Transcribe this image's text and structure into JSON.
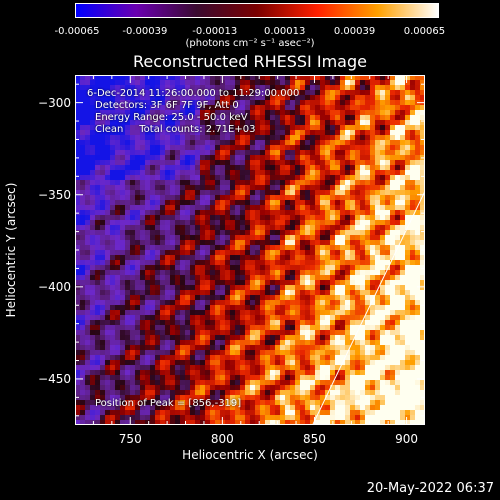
{
  "colorbar": {
    "ticks": [
      "-0.00065",
      "-0.00039",
      "-0.00013",
      "0.00013",
      "0.00039",
      "0.00065"
    ],
    "units": "(photons cm⁻² s⁻¹ asec⁻²)",
    "colors": [
      "#0000ff",
      "#6a00b0",
      "#3a0a30",
      "#7a0000",
      "#ff2000",
      "#ffa000",
      "#ffffff"
    ]
  },
  "chart_data": {
    "type": "heatmap",
    "title": "Reconstructed RHESSI Image",
    "xlabel": "Heliocentric X (arcsec)",
    "ylabel": "Heliocentric Y (arcsec)",
    "xlim": [
      720,
      910
    ],
    "ylim": [
      -475,
      -285
    ],
    "x_ticks": [
      750,
      800,
      850,
      900
    ],
    "y_ticks": [
      -300,
      -350,
      -400,
      -450
    ],
    "x_tick_labels": [
      "750",
      "800",
      "850",
      "900"
    ],
    "y_tick_labels": [
      "−300",
      "−350",
      "−400",
      "−450"
    ],
    "value_range": [
      -0.00065,
      0.00065
    ],
    "peak": [
      856,
      -319
    ],
    "limb_line": [
      [
        849,
        -475
      ],
      [
        910,
        -348
      ]
    ],
    "annotations": {
      "time": "6-Dec-2014 11:26:00.000 to 11:29:00.000",
      "detectors": "Detectors: 3F 6F 7F 9F, Att 0",
      "energy": "Energy Range: 25.0 - 50.0 keV",
      "clean": "Clean     Total counts: 2.71E+03",
      "peak": "Position of Peak = [856,-319]"
    }
  },
  "footer": {
    "date": "20-May-2022 06:37"
  }
}
